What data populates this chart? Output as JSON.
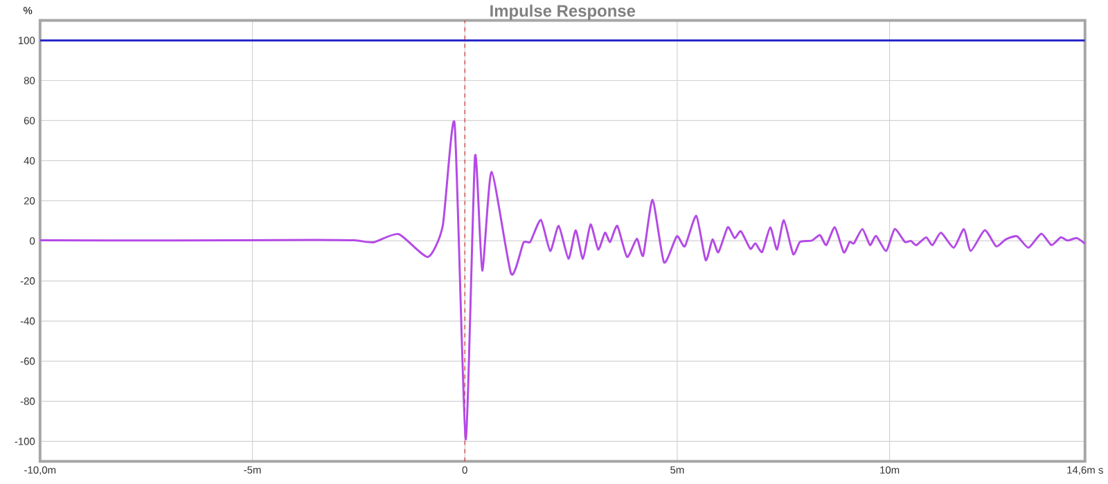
{
  "chart_data": {
    "type": "line",
    "title": "Impulse Response",
    "ylabel": "%",
    "xlim": [
      -10,
      14.6
    ],
    "ylim": [
      -110,
      110
    ],
    "xticks": [
      {
        "value": -10,
        "label": "-10,0m"
      },
      {
        "value": -5,
        "label": "-5m"
      },
      0,
      {
        "value": 5,
        "label": "5m"
      },
      {
        "value": 10,
        "label": "10m"
      },
      {
        "value": 14.6,
        "label": "14,6m s"
      }
    ],
    "yticks": [
      -100,
      -80,
      -60,
      -40,
      -20,
      0,
      20,
      40,
      60,
      80,
      100
    ],
    "grid": true,
    "ref_lines": [
      {
        "axis": "y",
        "value": 100,
        "color": "#2828c8"
      },
      {
        "axis": "x",
        "value": 0,
        "color": "#d02020",
        "line_style": "dashed"
      }
    ],
    "series": [
      {
        "color": "#b44ae6",
        "x": [
          -10,
          -7,
          -3.6,
          -2.6,
          -2.15,
          -1.56,
          -0.87,
          -0.52,
          -0.24,
          0.02,
          0.24,
          0.41,
          0.63,
          1.09,
          1.38,
          1.54,
          1.79,
          2.01,
          2.21,
          2.44,
          2.61,
          2.78,
          2.96,
          3.14,
          3.3,
          3.42,
          3.59,
          3.82,
          4.05,
          4.2,
          4.42,
          4.69,
          4.99,
          5.18,
          5.45,
          5.67,
          5.83,
          5.97,
          6.19,
          6.35,
          6.5,
          6.72,
          6.84,
          7.0,
          7.19,
          7.35,
          7.51,
          7.73,
          7.89,
          8.17,
          8.36,
          8.51,
          8.71,
          8.92,
          9.06,
          9.16,
          9.36,
          9.54,
          9.68,
          9.92,
          10.12,
          10.36,
          10.5,
          10.63,
          10.86,
          11.01,
          11.21,
          11.51,
          11.75,
          11.91,
          12.24,
          12.51,
          12.73,
          13.0,
          13.27,
          13.57,
          13.81,
          14.03,
          14.19,
          14.41,
          14.6
        ],
        "values": [
          0.3,
          0.2,
          0.5,
          0.3,
          -0.7,
          3.4,
          -8,
          7.5,
          58.4,
          -99,
          42.2,
          -14.8,
          34.5,
          -16.4,
          -0.9,
          -0.5,
          10.5,
          -5,
          7.5,
          -8.9,
          5.3,
          -8.9,
          8.2,
          -4.3,
          4.1,
          -0.5,
          7.5,
          -8,
          1.1,
          -7.3,
          20.5,
          -10.7,
          2.3,
          -2.7,
          12.5,
          -9.6,
          0.7,
          -5.7,
          6.8,
          1.4,
          4.8,
          -3.9,
          -1.2,
          -5.5,
          6.8,
          -4.3,
          10.3,
          -6.6,
          -0.5,
          0.2,
          2.9,
          -2.1,
          6.8,
          -5.7,
          -0.5,
          -1.2,
          5.9,
          -2.1,
          2.5,
          -5,
          5.9,
          -0.5,
          0,
          -2.1,
          1.8,
          -2.1,
          4.1,
          -3.4,
          5.9,
          -5,
          5.3,
          -2.7,
          0.7,
          2.3,
          -3.4,
          3.6,
          -2.1,
          1.8,
          0.2,
          1.4,
          -1.4
        ]
      }
    ]
  }
}
